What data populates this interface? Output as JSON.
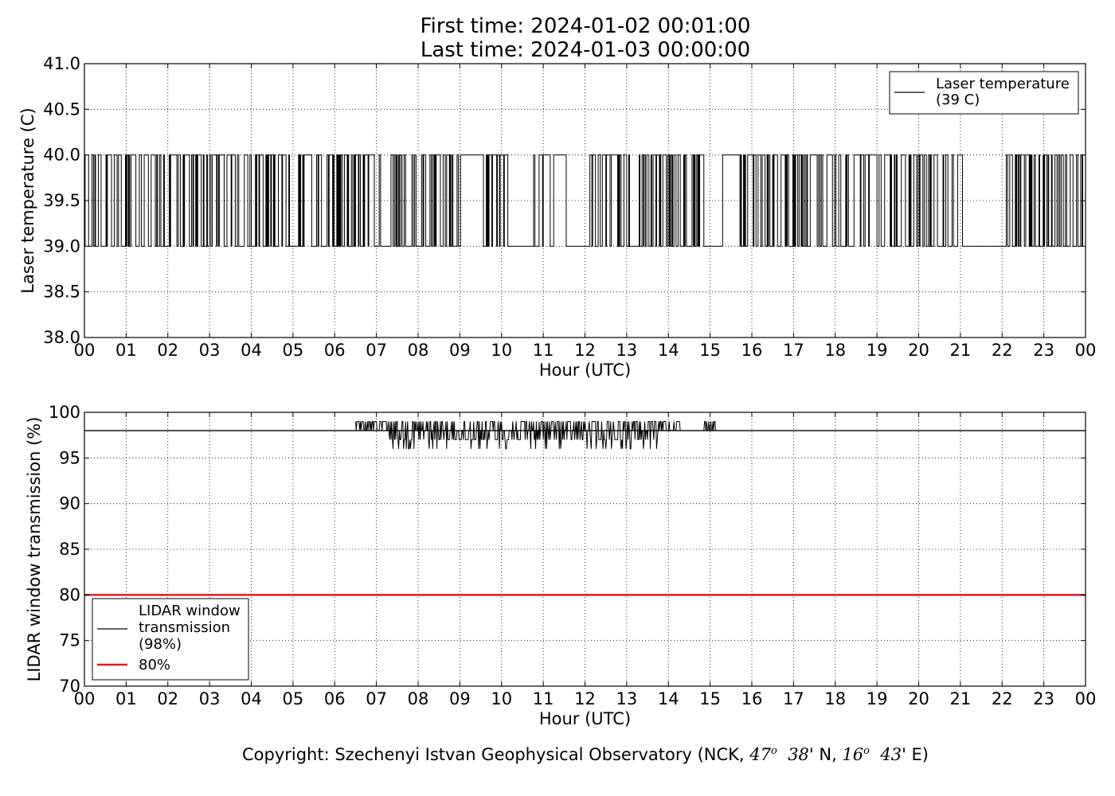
{
  "header": {
    "first_time": "First time: 2024-01-02 00:01:00",
    "last_time": "Last time: 2024-01-03 00:00:00"
  },
  "footer": {
    "copyright_prefix": "Copyright: Szechenyi Istvan Geophysical Observatory (NCK, ",
    "lat_deg": "47",
    "lat_min": "38",
    "lat_hemisphere": "' N, ",
    "lon_deg": "16",
    "lon_min": "43",
    "lon_hemisphere": "' E)",
    "degree_symbol": "o"
  },
  "chart_data": [
    {
      "type": "line",
      "title": "",
      "xlabel": "Hour (UTC)",
      "ylabel": "Laser temperature (C)",
      "xlim": [
        0,
        24
      ],
      "ylim": [
        38.0,
        41.0
      ],
      "x_ticks": [
        0,
        1,
        2,
        3,
        4,
        5,
        6,
        7,
        8,
        9,
        10,
        11,
        12,
        13,
        14,
        15,
        16,
        17,
        18,
        19,
        20,
        21,
        22,
        23,
        24
      ],
      "x_tick_labels": [
        "00",
        "01",
        "02",
        "03",
        "04",
        "05",
        "06",
        "07",
        "08",
        "09",
        "10",
        "11",
        "12",
        "13",
        "14",
        "15",
        "16",
        "17",
        "18",
        "19",
        "20",
        "21",
        "22",
        "23",
        "00"
      ],
      "y_ticks": [
        38.0,
        38.5,
        39.0,
        39.5,
        40.0,
        40.5,
        41.0
      ],
      "y_tick_labels": [
        "38.0",
        "38.5",
        "39.0",
        "39.5",
        "40.0",
        "40.5",
        "41.0"
      ],
      "grid": true,
      "legend_position": "top-right",
      "series": [
        {
          "name": "Laser temperature\n(39 C)",
          "legend_lines": [
            "Laser temperature",
            "(39 C)"
          ],
          "color": "#000000",
          "levels": [
            39.0,
            40.0
          ],
          "description_values": "1-minute samples toggling between 39.0 and 40.0",
          "steady_segments": [
            {
              "from": 9.15,
              "to": 9.5,
              "value": 40.0
            },
            {
              "from": 10.2,
              "to": 10.7,
              "value": 39.0
            },
            {
              "from": 11.25,
              "to": 11.55,
              "value": 40.0
            },
            {
              "from": 11.55,
              "to": 12.05,
              "value": 39.0
            },
            {
              "from": 14.85,
              "to": 15.25,
              "value": 39.0
            },
            {
              "from": 15.3,
              "to": 15.7,
              "value": 40.0
            },
            {
              "from": 21.05,
              "to": 22.1,
              "value": 39.0
            }
          ],
          "dense_segments": [
            {
              "from": 0.0,
              "to": 9.1
            },
            {
              "from": 9.5,
              "to": 11.2
            },
            {
              "from": 12.1,
              "to": 14.8
            },
            {
              "from": 15.7,
              "to": 21.0
            },
            {
              "from": 22.1,
              "to": 24.0
            }
          ]
        }
      ]
    },
    {
      "type": "line",
      "title": "",
      "xlabel": "Hour (UTC)",
      "ylabel": "LIDAR window transmission (%)",
      "xlim": [
        0,
        24
      ],
      "ylim": [
        70,
        100
      ],
      "x_ticks": [
        0,
        1,
        2,
        3,
        4,
        5,
        6,
        7,
        8,
        9,
        10,
        11,
        12,
        13,
        14,
        15,
        16,
        17,
        18,
        19,
        20,
        21,
        22,
        23,
        24
      ],
      "x_tick_labels": [
        "00",
        "01",
        "02",
        "03",
        "04",
        "05",
        "06",
        "07",
        "08",
        "09",
        "10",
        "11",
        "12",
        "13",
        "14",
        "15",
        "16",
        "17",
        "18",
        "19",
        "20",
        "21",
        "22",
        "23",
        "00"
      ],
      "y_ticks": [
        70,
        75,
        80,
        85,
        90,
        95,
        100
      ],
      "y_tick_labels": [
        "70",
        "75",
        "80",
        "85",
        "90",
        "95",
        "100"
      ],
      "grid": true,
      "legend_position": "bottom-left",
      "series": [
        {
          "name": "LIDAR window\ntransmission\n(98%)",
          "legend_lines": [
            "LIDAR window",
            "transmission",
            "(98%)"
          ],
          "color": "#000000",
          "baseline": 98,
          "noisy_range": [
            6.5,
            14.3
          ],
          "noisy_min": 96,
          "noisy_max": 99,
          "extra_blip_range": [
            14.85,
            15.15
          ],
          "extra_blip_value": 99
        },
        {
          "name": "80%",
          "legend_lines": [
            "80%"
          ],
          "color": "#e41a1c",
          "value": 80
        }
      ]
    }
  ]
}
